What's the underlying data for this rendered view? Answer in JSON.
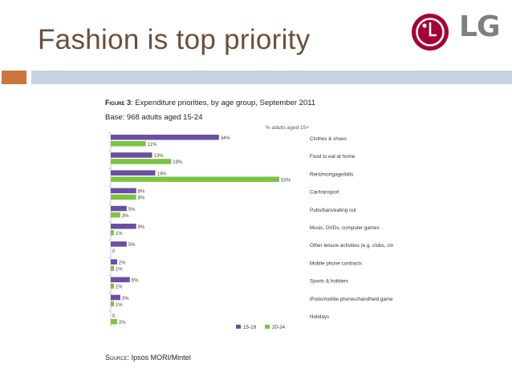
{
  "slide": {
    "title": "Fashion is top priority",
    "logo_text": "LG"
  },
  "colors": {
    "title": "#6b4f3c",
    "band": "#c7d3e1",
    "accent": "#c9763d",
    "series_15_19": "#6a4fa3",
    "series_20_24": "#7cc444"
  },
  "figure": {
    "label": "Figure 3",
    "caption": ": Expenditure priorities, by age group, September 2011",
    "base": "Base: 968 adults aged 15-24",
    "source_label": "Source:",
    "source_value": " Ipsos MORI/Mintel"
  },
  "chart_data": {
    "type": "bar",
    "orientation": "horizontal",
    "unit_label": "% adults aged 15+",
    "categories": [
      "Clothes & shoes",
      "Food to eat at home",
      "Rent/mortgage/bills",
      "Car/transport",
      "Pubs/bars/eating out",
      "Music, DVDs, computer games",
      "Other leisure activities (e.g. clubs, cin",
      "Mobile phone contracts",
      "Sports & hobbies",
      "iPods/mobile phones/handheld game",
      "Holidays"
    ],
    "series": [
      {
        "name": "15-19",
        "values": [
          34,
          13,
          14,
          8,
          5,
          8,
          5,
          2,
          6,
          3,
          0
        ],
        "labels": [
          "34%",
          "13%",
          "14%",
          "8%",
          "5%",
          "8%",
          "5%",
          "2%",
          "6%",
          "3%",
          "0"
        ]
      },
      {
        "name": "20-24",
        "values": [
          11,
          19,
          53,
          8,
          3,
          1,
          0,
          1,
          1,
          1,
          2
        ],
        "labels": [
          "11%",
          "19%",
          "53%",
          "8%",
          "3%",
          "1%",
          "0",
          "1%",
          "1%",
          "1%",
          "2%"
        ]
      }
    ],
    "xlim": [
      0,
      55
    ],
    "legend_position": "bottom"
  }
}
